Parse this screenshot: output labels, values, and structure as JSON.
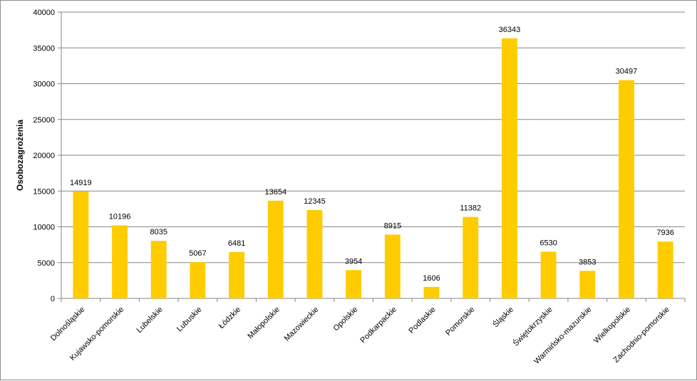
{
  "chart_data": {
    "type": "bar",
    "title": "",
    "xlabel": "",
    "ylabel": "Osobozagrożenia",
    "ylim": [
      0,
      40000
    ],
    "yticks": [
      0,
      5000,
      10000,
      15000,
      20000,
      25000,
      30000,
      35000,
      40000
    ],
    "grid": true,
    "legend": "none",
    "bar_color": "#FFCC00",
    "categories": [
      "Dolnośląskie",
      "Kujawsko-pomorskie",
      "Lubelskie",
      "Lubuskie",
      "Łódzkie",
      "Małopolskie",
      "Mazowieckie",
      "Opolskie",
      "Podkarpackie",
      "Podlaskie",
      "Pomorskie",
      "Śląskie",
      "Świętokrzyskie",
      "Warmińsko-mazurskie",
      "Wielkopolskie",
      "Zachodnio-pomorskie"
    ],
    "values": [
      14919,
      10196,
      8035,
      5067,
      6481,
      13654,
      12345,
      3954,
      8915,
      1606,
      11382,
      36343,
      6530,
      3853,
      30497,
      7936
    ]
  }
}
